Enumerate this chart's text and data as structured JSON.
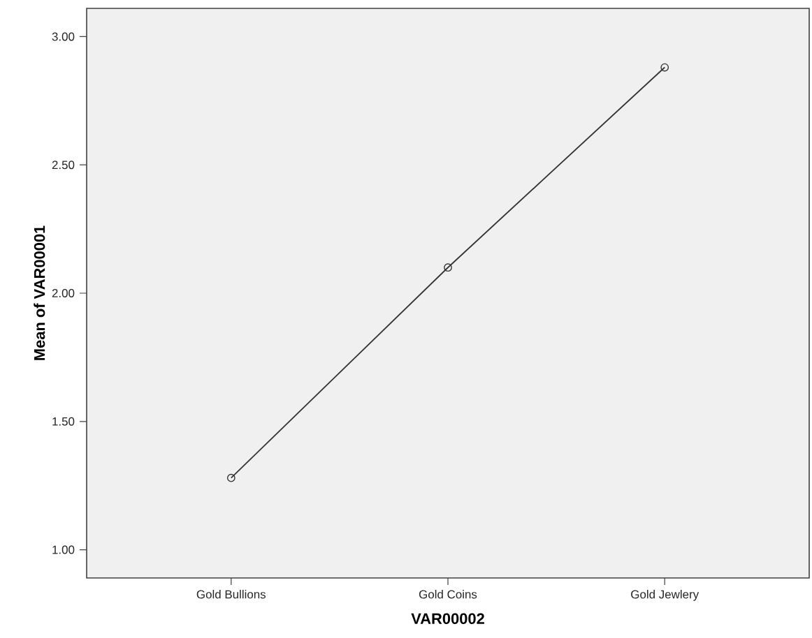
{
  "chart_data": {
    "type": "line",
    "xlabel": "VAR00002",
    "ylabel": "Mean of VAR00001",
    "categories": [
      "Gold Bullions",
      "Gold Coins",
      "Gold Jewlery"
    ],
    "series": [
      {
        "color": "#333333",
        "values": [
          1.28,
          2.1,
          2.88
        ]
      }
    ],
    "marker": "circle",
    "line_style": "solid",
    "grid": false,
    "ylim": [
      0.89,
      3.11
    ],
    "yticks": [
      {
        "value": 1.0,
        "label": "1.00"
      },
      {
        "value": 1.5,
        "label": "1.50"
      },
      {
        "value": 2.0,
        "label": "2.00"
      },
      {
        "value": 2.5,
        "label": "2.50"
      },
      {
        "value": 3.0,
        "label": "3.00"
      }
    ]
  }
}
